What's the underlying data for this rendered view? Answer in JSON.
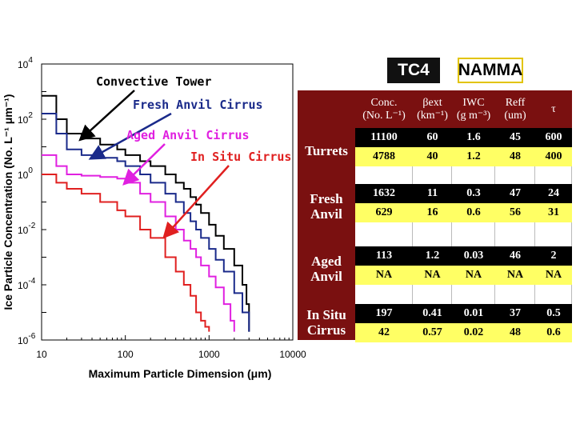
{
  "chart_data": {
    "type": "line",
    "xlabel": "Maximum Particle Dimension (μm)",
    "ylabel": "Ice Particle Concentration (No. L⁻¹ μm⁻¹)",
    "xscale": "log",
    "yscale": "log",
    "xlim": [
      10,
      10000
    ],
    "ylim": [
      1e-06,
      10000
    ],
    "xticks": [
      "10",
      "100",
      "1000",
      "10000"
    ],
    "yticks": [
      "10^4",
      "10^2",
      "10^0",
      "10^-2",
      "10^-4",
      "10^-6"
    ],
    "grid": false,
    "series": [
      {
        "name": "Convective Tower",
        "color": "#000000",
        "x": [
          10,
          15,
          15,
          20,
          20,
          30,
          50,
          80,
          100,
          150,
          200,
          300,
          400,
          500,
          600,
          700,
          800,
          1000,
          1200,
          1500,
          2000,
          2500,
          2800,
          3000
        ],
        "y": [
          700,
          700,
          100,
          100,
          30,
          20,
          12,
          8,
          5,
          3,
          2,
          1,
          0.5,
          0.3,
          0.15,
          0.08,
          0.04,
          0.015,
          0.006,
          0.002,
          0.0005,
          0.0001,
          2e-05,
          2e-06
        ]
      },
      {
        "name": "Fresh Anvil Cirrus",
        "color": "#1a2a8a",
        "x": [
          10,
          15,
          15,
          20,
          20,
          30,
          50,
          80,
          100,
          150,
          200,
          300,
          400,
          500,
          600,
          700,
          800,
          1000,
          1200,
          1500,
          2000,
          2500,
          3000
        ],
        "y": [
          160,
          160,
          30,
          30,
          8,
          5,
          4,
          3,
          2,
          1,
          0.5,
          0.2,
          0.1,
          0.04,
          0.02,
          0.01,
          0.005,
          0.002,
          0.0008,
          0.0003,
          5e-05,
          1e-05,
          2e-06
        ]
      },
      {
        "name": "Aged Anvil Cirrus",
        "color": "#e020e0",
        "x": [
          10,
          15,
          15,
          20,
          20,
          30,
          50,
          80,
          100,
          150,
          200,
          300,
          400,
          500,
          600,
          700,
          800,
          1000,
          1200,
          1500,
          1800,
          2000
        ],
        "y": [
          5,
          5,
          2,
          2,
          1,
          0.9,
          0.8,
          0.7,
          0.5,
          0.2,
          0.1,
          0.03,
          0.01,
          0.004,
          0.002,
          0.001,
          0.0005,
          0.0002,
          8e-05,
          2e-05,
          5e-06,
          2e-06
        ]
      },
      {
        "name": "In Situ Cirrus",
        "color": "#e02020",
        "x": [
          10,
          15,
          15,
          20,
          20,
          30,
          50,
          80,
          100,
          150,
          200,
          300,
          400,
          500,
          600,
          700,
          800,
          900,
          1000
        ],
        "y": [
          1,
          1,
          0.5,
          0.5,
          0.3,
          0.2,
          0.1,
          0.05,
          0.03,
          0.01,
          0.005,
          0.001,
          0.0003,
          0.0001,
          4e-05,
          1e-05,
          5e-06,
          3e-06,
          2e-06
        ]
      }
    ],
    "annotations": [
      {
        "text": "Convective Tower",
        "color": "#000000",
        "arrow_to": [
          30,
          20
        ]
      },
      {
        "text": "Fresh Anvil Cirrus",
        "color": "#1a2a8a",
        "arrow_to": [
          40,
          4
        ]
      },
      {
        "text": "Aged Anvil Cirrus",
        "color": "#e020e0",
        "arrow_to": [
          100,
          0.5
        ]
      },
      {
        "text": "In Situ Cirrus",
        "color": "#e02020",
        "arrow_to": [
          300,
          0.006
        ]
      }
    ]
  },
  "campaigns": {
    "tc4": "TC4",
    "namma": "NAMMA"
  },
  "table": {
    "header": [
      {
        "line1": "Conc.",
        "line2": "(No. L⁻¹)"
      },
      {
        "line1": "βext",
        "line2": "(km⁻¹)"
      },
      {
        "line1": "IWC",
        "line2": "(g m⁻³)"
      },
      {
        "line1": "Reff",
        "line2": "(um)"
      },
      {
        "line1": "τ",
        "line2": ""
      }
    ],
    "rows": [
      {
        "label": [
          "Turrets"
        ],
        "tc4": [
          "11100",
          "60",
          "1.6",
          "45",
          "600"
        ],
        "namma": [
          "4788",
          "40",
          "1.2",
          "48",
          "400"
        ]
      },
      {
        "label": [
          "Fresh",
          "Anvil"
        ],
        "tc4": [
          "1632",
          "11",
          "0.3",
          "47",
          "24"
        ],
        "namma": [
          "629",
          "16",
          "0.6",
          "56",
          "31"
        ]
      },
      {
        "label": [
          "Aged",
          "Anvil"
        ],
        "tc4": [
          "113",
          "1.2",
          "0.03",
          "46",
          "2"
        ],
        "namma": [
          "NA",
          "NA",
          "NA",
          "NA",
          "NA"
        ]
      },
      {
        "label": [
          "In Situ",
          "Cirrus"
        ],
        "tc4": [
          "197",
          "0.41",
          "0.01",
          "37",
          "0.5"
        ],
        "namma": [
          "42",
          "0.57",
          "0.02",
          "48",
          "0.6"
        ]
      }
    ]
  }
}
